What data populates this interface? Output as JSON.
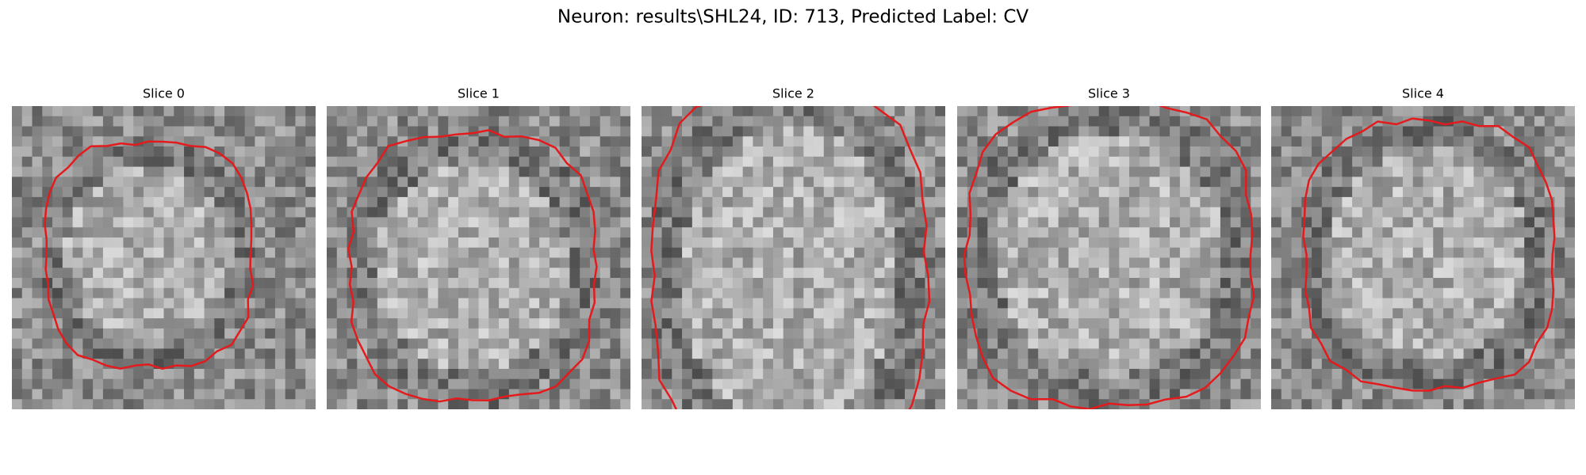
{
  "title": "Neuron: results\\SHL24, ID: 713, Predicted Label: CV",
  "panels": [
    {
      "title": "Slice 0"
    },
    {
      "title": "Slice 1"
    },
    {
      "title": "Slice 2"
    },
    {
      "title": "Slice 3"
    },
    {
      "title": "Slice 4"
    }
  ]
}
